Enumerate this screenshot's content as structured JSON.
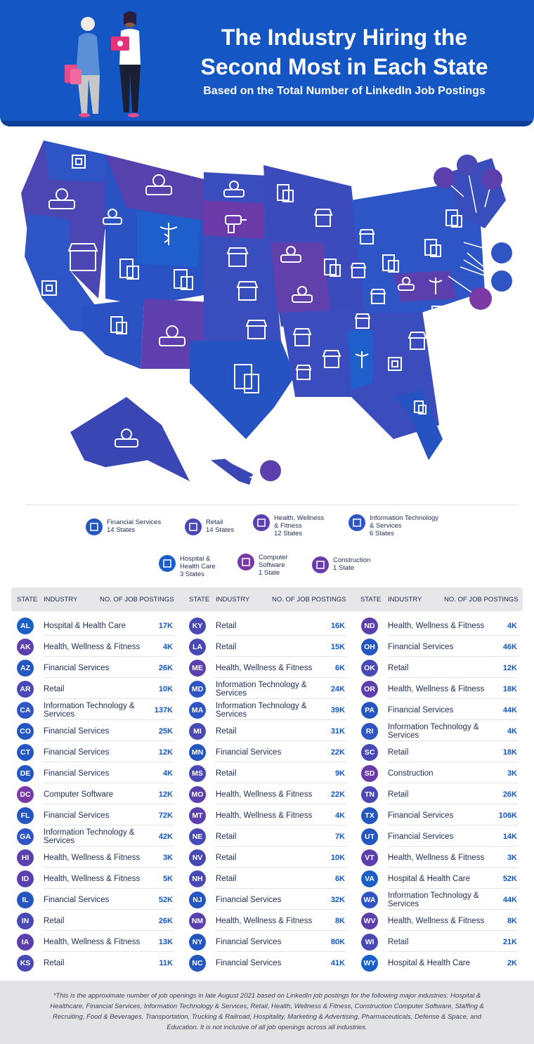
{
  "header": {
    "title_line1": "The Industry Hiring the",
    "title_line2": "Second Most in Each State",
    "subtitle": "Based on the Total Number of LinkedIn Job Postings"
  },
  "colors": {
    "header_bg": "#1356c4",
    "financial": "#2456c0",
    "retail": "#4849b4",
    "health": "#5b40ad",
    "it": "#2f55c4",
    "hospital": "#1a5fc8",
    "software": "#7a3aa6",
    "construction": "#6a3aa8",
    "value_text": "#1356c4"
  },
  "legend": [
    {
      "label": "Financial Services",
      "count": "14 States",
      "icon": "financial-document-icon",
      "cat": "financial"
    },
    {
      "label": "Retail",
      "count": "14 States",
      "icon": "storefront-icon",
      "cat": "retail"
    },
    {
      "label": "Health, Wellness\n& Fitness",
      "count": "12 States",
      "icon": "apple-scale-icon",
      "cat": "health"
    },
    {
      "label": "Information Technology\n& Services",
      "count": "6 States",
      "icon": "microchip-icon",
      "cat": "it"
    },
    {
      "label": "Hospital &\nHealth Care",
      "count": "3 States",
      "icon": "caduceus-icon",
      "cat": "hospital"
    },
    {
      "label": "Computer\nSoftware",
      "count": "1 State",
      "icon": "monitor-icon",
      "cat": "software"
    },
    {
      "label": "Construction",
      "count": "1 State",
      "icon": "drill-icon",
      "cat": "construction"
    }
  ],
  "table": {
    "headers": {
      "state": "STATE",
      "industry": "INDUSTRY",
      "postings": "NO. OF JOB POSTINGS"
    },
    "columns": [
      [
        {
          "state": "AL",
          "industry": "Hospital & Health Care",
          "postings": "17K",
          "cat": "hospital"
        },
        {
          "state": "AK",
          "industry": "Health, Wellness & Fitness",
          "postings": "4K",
          "cat": "health"
        },
        {
          "state": "AZ",
          "industry": "Financial Services",
          "postings": "26K",
          "cat": "financial"
        },
        {
          "state": "AR",
          "industry": "Retail",
          "postings": "10K",
          "cat": "retail"
        },
        {
          "state": "CA",
          "industry": "Information Technology & Services",
          "postings": "137K",
          "cat": "it"
        },
        {
          "state": "CO",
          "industry": "Financial Services",
          "postings": "25K",
          "cat": "financial"
        },
        {
          "state": "CT",
          "industry": "Financial Services",
          "postings": "12K",
          "cat": "financial"
        },
        {
          "state": "DE",
          "industry": "Financial Services",
          "postings": "4K",
          "cat": "financial"
        },
        {
          "state": "DC",
          "industry": "Computer Software",
          "postings": "12K",
          "cat": "software"
        },
        {
          "state": "FL",
          "industry": "Financial Services",
          "postings": "72K",
          "cat": "financial"
        },
        {
          "state": "GA",
          "industry": "Information Technology & Services",
          "postings": "42K",
          "cat": "it"
        },
        {
          "state": "HI",
          "industry": "Health, Wellness & Fitness",
          "postings": "3K",
          "cat": "health"
        },
        {
          "state": "ID",
          "industry": "Health, Wellness & Fitness",
          "postings": "5K",
          "cat": "health"
        },
        {
          "state": "IL",
          "industry": "Financial Services",
          "postings": "52K",
          "cat": "financial"
        },
        {
          "state": "IN",
          "industry": "Retail",
          "postings": "26K",
          "cat": "retail"
        },
        {
          "state": "IA",
          "industry": "Health, Wellness & Fitness",
          "postings": "13K",
          "cat": "health"
        },
        {
          "state": "KS",
          "industry": "Retail",
          "postings": "11K",
          "cat": "retail"
        }
      ],
      [
        {
          "state": "KY",
          "industry": "Retail",
          "postings": "16K",
          "cat": "retail"
        },
        {
          "state": "LA",
          "industry": "Retail",
          "postings": "15K",
          "cat": "retail"
        },
        {
          "state": "ME",
          "industry": "Health, Wellness & Fitness",
          "postings": "6K",
          "cat": "health"
        },
        {
          "state": "MD",
          "industry": "Information Technology & Services",
          "postings": "24K",
          "cat": "it"
        },
        {
          "state": "MA",
          "industry": "Information Technology & Services",
          "postings": "39K",
          "cat": "it"
        },
        {
          "state": "MI",
          "industry": "Retail",
          "postings": "31K",
          "cat": "retail"
        },
        {
          "state": "MN",
          "industry": "Financial Services",
          "postings": "22K",
          "cat": "financial"
        },
        {
          "state": "MS",
          "industry": "Retail",
          "postings": "9K",
          "cat": "retail"
        },
        {
          "state": "MO",
          "industry": "Health, Wellness & Fitness",
          "postings": "22K",
          "cat": "health"
        },
        {
          "state": "MT",
          "industry": "Health, Wellness & Fitness",
          "postings": "4K",
          "cat": "health"
        },
        {
          "state": "NE",
          "industry": "Retail",
          "postings": "7K",
          "cat": "retail"
        },
        {
          "state": "NV",
          "industry": "Retail",
          "postings": "10K",
          "cat": "retail"
        },
        {
          "state": "NH",
          "industry": "Retail",
          "postings": "6K",
          "cat": "retail"
        },
        {
          "state": "NJ",
          "industry": "Financial Services",
          "postings": "32K",
          "cat": "financial"
        },
        {
          "state": "NM",
          "industry": "Health, Wellness & Fitness",
          "postings": "8K",
          "cat": "health"
        },
        {
          "state": "NY",
          "industry": "Financial Services",
          "postings": "80K",
          "cat": "financial"
        },
        {
          "state": "NC",
          "industry": "Financial Services",
          "postings": "41K",
          "cat": "financial"
        }
      ],
      [
        {
          "state": "ND",
          "industry": "Health, Wellness & Fitness",
          "postings": "4K",
          "cat": "health"
        },
        {
          "state": "OH",
          "industry": "Financial Services",
          "postings": "46K",
          "cat": "financial"
        },
        {
          "state": "OK",
          "industry": "Retail",
          "postings": "12K",
          "cat": "retail"
        },
        {
          "state": "OR",
          "industry": "Health, Wellness & Fitness",
          "postings": "18K",
          "cat": "health"
        },
        {
          "state": "PA",
          "industry": "Financial Services",
          "postings": "44K",
          "cat": "financial"
        },
        {
          "state": "RI",
          "industry": "Information Technology & Services",
          "postings": "4K",
          "cat": "it"
        },
        {
          "state": "SC",
          "industry": "Retail",
          "postings": "18K",
          "cat": "retail"
        },
        {
          "state": "SD",
          "industry": "Construction",
          "postings": "3K",
          "cat": "construction"
        },
        {
          "state": "TN",
          "industry": "Retail",
          "postings": "26K",
          "cat": "retail"
        },
        {
          "state": "TX",
          "industry": "Financial Services",
          "postings": "106K",
          "cat": "financial"
        },
        {
          "state": "UT",
          "industry": "Financial Services",
          "postings": "14K",
          "cat": "financial"
        },
        {
          "state": "VT",
          "industry": "Health, Wellness & Fitness",
          "postings": "3K",
          "cat": "health"
        },
        {
          "state": "VA",
          "industry": "Hospital & Health Care",
          "postings": "52K",
          "cat": "hospital"
        },
        {
          "state": "WA",
          "industry": "Information Technology & Services",
          "postings": "44K",
          "cat": "it"
        },
        {
          "state": "WV",
          "industry": "Health, Wellness & Fitness",
          "postings": "8K",
          "cat": "health"
        },
        {
          "state": "WI",
          "industry": "Retail",
          "postings": "21K",
          "cat": "retail"
        },
        {
          "state": "WY",
          "industry": "Hospital & Health Care",
          "postings": "2K",
          "cat": "hospital"
        }
      ]
    ]
  },
  "footnote": "*This is the approximate number of job openings in late August 2021 based on LinkedIn job postings for the following major industries: Hospital & Healthcare, Financial Services, Information Technology & Services, Retail, Health, Wellness & Fitness, Construction Computer Software, Staffing & Recruiting, Food & Beverages, Transportation, Trucking & Railroad, Hospitality, Marketing & Advertising, Pharmaceuticals, Defense & Space, and Education. It is not inclusive of all job openings across all industries."
}
